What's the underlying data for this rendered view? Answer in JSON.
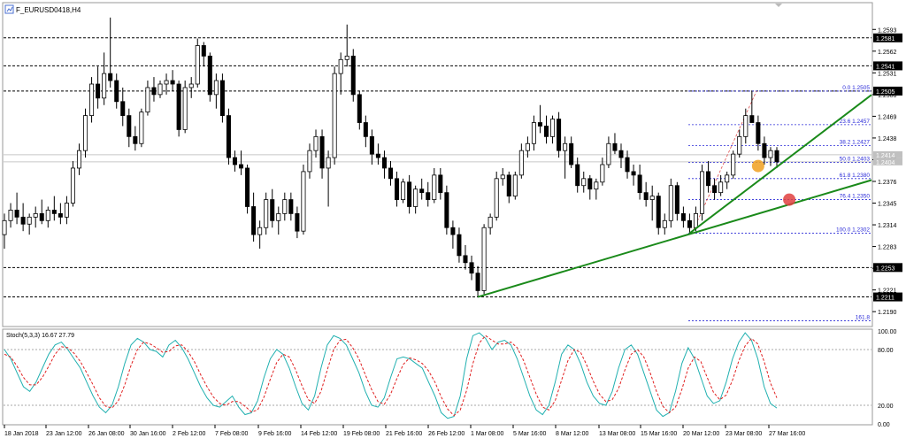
{
  "window": {
    "title": "F_EURUSD0418,H4",
    "icon": "chart-window-icon",
    "accent": "#4a6fd1"
  },
  "colors": {
    "candle_up": "#ffffff",
    "candle_down": "#000000",
    "trendline": "#1a8a1a",
    "fib": "#2a2ad8",
    "fib_diag": "#e05050",
    "hline": "#000000",
    "stoch_main": "#20b0b0",
    "stoch_signal": "#e02020",
    "marker_orange": "#f0a020",
    "marker_red": "#e04040"
  },
  "chart_data": [
    {
      "type": "candlestick",
      "title": "F_EURUSD0418,H4",
      "ylim": [
        1.217,
        1.263
      ],
      "price_ticks": [
        "1.2593",
        "1.2562",
        "1.2531",
        "1.2500",
        "1.2469",
        "1.2438",
        "1.2407",
        "1.2376",
        "1.2345",
        "1.2314",
        "1.2283",
        "1.2252",
        "1.2221",
        "1.2190"
      ],
      "hlines": [
        {
          "value": 1.2581,
          "label": "1.2581"
        },
        {
          "value": 1.2541,
          "label": "1.2541"
        },
        {
          "value": 1.2505,
          "label": "1.2505"
        },
        {
          "value": 1.2253,
          "label": "1.2253"
        },
        {
          "value": 1.2211,
          "label": "1.2211"
        }
      ],
      "current_price_labels": [
        "1.2414",
        "1.2404"
      ],
      "fib_levels": [
        {
          "label": "0.0  1.2505",
          "value": 1.2505
        },
        {
          "label": "23.6  1.2457",
          "value": 1.2457
        },
        {
          "label": "38.2  1.2427",
          "value": 1.2427
        },
        {
          "label": "50.0  1.2403",
          "value": 1.2403
        },
        {
          "label": "61.8  1.2380",
          "value": 1.238
        },
        {
          "label": "76.4  1.2350",
          "value": 1.235
        },
        {
          "label": "100.0  1.2302",
          "value": 1.2302
        },
        {
          "label": "161.8",
          "value": 1.2177
        }
      ],
      "x_labels": [
        "18 Jan 2018",
        "23 Jan 12:00",
        "26 Jan 08:00",
        "30 Jan 16:00",
        "2 Feb 12:00",
        "7 Feb 08:00",
        "9 Feb 16:00",
        "14 Feb 12:00",
        "19 Feb 08:00",
        "21 Feb 16:00",
        "26 Feb 12:00",
        "1 Mar 08:00",
        "5 Mar 16:00",
        "8 Mar 12:00",
        "13 Mar 08:00",
        "15 Mar 16:00",
        "20 Mar 12:00",
        "23 Mar 08:00",
        "27 Mar 16:00"
      ],
      "candles": [
        [
          1.23,
          1.233,
          1.228,
          1.232
        ],
        [
          1.232,
          1.2345,
          1.231,
          1.2335
        ],
        [
          1.2335,
          1.236,
          1.2315,
          1.2325
        ],
        [
          1.2325,
          1.2345,
          1.2305,
          1.2315
        ],
        [
          1.2315,
          1.233,
          1.23,
          1.2325
        ],
        [
          1.2325,
          1.234,
          1.231,
          1.233
        ],
        [
          1.233,
          1.235,
          1.2315,
          1.232
        ],
        [
          1.232,
          1.234,
          1.231,
          1.2335
        ],
        [
          1.2335,
          1.2355,
          1.232,
          1.233
        ],
        [
          1.233,
          1.2345,
          1.2315,
          1.2325
        ],
        [
          1.2325,
          1.2355,
          1.2315,
          1.2345
        ],
        [
          1.2345,
          1.2405,
          1.234,
          1.2395
        ],
        [
          1.2395,
          1.243,
          1.2385,
          1.242
        ],
        [
          1.242,
          1.248,
          1.241,
          1.247
        ],
        [
          1.247,
          1.2525,
          1.246,
          1.2515
        ],
        [
          1.2515,
          1.254,
          1.248,
          1.2495
        ],
        [
          1.2495,
          1.256,
          1.2485,
          1.253
        ],
        [
          1.253,
          1.261,
          1.251,
          1.252
        ],
        [
          1.252,
          1.253,
          1.248,
          1.249
        ],
        [
          1.249,
          1.251,
          1.2455,
          1.247
        ],
        [
          1.247,
          1.248,
          1.2425,
          1.244
        ],
        [
          1.244,
          1.2455,
          1.242,
          1.243
        ],
        [
          1.243,
          1.248,
          1.2425,
          1.2475
        ],
        [
          1.2475,
          1.252,
          1.247,
          1.251
        ],
        [
          1.251,
          1.2525,
          1.249,
          1.25
        ],
        [
          1.25,
          1.252,
          1.2495,
          1.2515
        ],
        [
          1.2515,
          1.253,
          1.25,
          1.252
        ],
        [
          1.252,
          1.2535,
          1.2505,
          1.2515
        ],
        [
          1.2515,
          1.252,
          1.244,
          1.245
        ],
        [
          1.245,
          1.252,
          1.2445,
          1.251
        ],
        [
          1.251,
          1.2525,
          1.2495,
          1.2515
        ],
        [
          1.2515,
          1.258,
          1.251,
          1.257
        ],
        [
          1.257,
          1.2575,
          1.254,
          1.2555
        ],
        [
          1.2555,
          1.256,
          1.249,
          1.25
        ],
        [
          1.25,
          1.253,
          1.248,
          1.252
        ],
        [
          1.252,
          1.253,
          1.246,
          1.247
        ],
        [
          1.247,
          1.248,
          1.24,
          1.241
        ],
        [
          1.241,
          1.242,
          1.239,
          1.24
        ],
        [
          1.24,
          1.242,
          1.2385,
          1.2395
        ],
        [
          1.2395,
          1.24,
          1.233,
          1.234
        ],
        [
          1.234,
          1.236,
          1.229,
          1.23
        ],
        [
          1.23,
          1.232,
          1.228,
          1.231
        ],
        [
          1.231,
          1.236,
          1.23,
          1.235
        ],
        [
          1.235,
          1.2365,
          1.231,
          1.232
        ],
        [
          1.232,
          1.234,
          1.23,
          1.233
        ],
        [
          1.233,
          1.236,
          1.232,
          1.235
        ],
        [
          1.235,
          1.236,
          1.232,
          1.233
        ],
        [
          1.233,
          1.234,
          1.2295,
          1.2305
        ],
        [
          1.2305,
          1.24,
          1.23,
          1.239
        ],
        [
          1.239,
          1.243,
          1.238,
          1.242
        ],
        [
          1.242,
          1.245,
          1.241,
          1.244
        ],
        [
          1.244,
          1.245,
          1.238,
          1.2395
        ],
        [
          1.2395,
          1.242,
          1.234,
          1.241
        ],
        [
          1.241,
          1.254,
          1.24,
          1.253
        ],
        [
          1.253,
          1.256,
          1.25,
          1.255
        ],
        [
          1.255,
          1.26,
          1.254,
          1.2555
        ],
        [
          1.2555,
          1.2565,
          1.249,
          1.25
        ],
        [
          1.25,
          1.2505,
          1.245,
          1.246
        ],
        [
          1.246,
          1.247,
          1.2425,
          1.244
        ],
        [
          1.244,
          1.245,
          1.24,
          1.2415
        ],
        [
          1.2415,
          1.243,
          1.24,
          1.241
        ],
        [
          1.241,
          1.242,
          1.238,
          1.2395
        ],
        [
          1.2395,
          1.2405,
          1.237,
          1.238
        ],
        [
          1.238,
          1.239,
          1.234,
          1.235
        ],
        [
          1.235,
          1.238,
          1.2345,
          1.2375
        ],
        [
          1.2375,
          1.2385,
          1.233,
          1.234
        ],
        [
          1.234,
          1.237,
          1.233,
          1.2365
        ],
        [
          1.2365,
          1.238,
          1.235,
          1.236
        ],
        [
          1.236,
          1.2375,
          1.234,
          1.235
        ],
        [
          1.235,
          1.2395,
          1.2345,
          1.2385
        ],
        [
          1.2385,
          1.2395,
          1.235,
          1.236
        ],
        [
          1.236,
          1.237,
          1.23,
          1.231
        ],
        [
          1.231,
          1.232,
          1.228,
          1.23
        ],
        [
          1.23,
          1.231,
          1.226,
          1.227
        ],
        [
          1.227,
          1.2285,
          1.225,
          1.226
        ],
        [
          1.226,
          1.227,
          1.2235,
          1.2245
        ],
        [
          1.2245,
          1.2255,
          1.2211,
          1.222
        ],
        [
          1.222,
          1.2315,
          1.2215,
          1.231
        ],
        [
          1.231,
          1.233,
          1.23,
          1.2325
        ],
        [
          1.2325,
          1.239,
          1.232,
          1.238
        ],
        [
          1.238,
          1.2395,
          1.237,
          1.2385
        ],
        [
          1.2385,
          1.239,
          1.2345,
          1.2355
        ],
        [
          1.2355,
          1.239,
          1.235,
          1.2385
        ],
        [
          1.2385,
          1.243,
          1.238,
          1.242
        ],
        [
          1.242,
          1.244,
          1.241,
          1.243
        ],
        [
          1.243,
          1.247,
          1.242,
          1.246
        ],
        [
          1.246,
          1.2485,
          1.2445,
          1.2455
        ],
        [
          1.2455,
          1.247,
          1.243,
          1.244
        ],
        [
          1.244,
          1.247,
          1.243,
          1.2465
        ],
        [
          1.2465,
          1.2475,
          1.241,
          1.242
        ],
        [
          1.242,
          1.244,
          1.238,
          1.243
        ],
        [
          1.243,
          1.244,
          1.2395,
          1.24
        ],
        [
          1.24,
          1.241,
          1.236,
          1.237
        ],
        [
          1.237,
          1.239,
          1.236,
          1.238
        ],
        [
          1.238,
          1.2385,
          1.235,
          1.2365
        ],
        [
          1.2365,
          1.238,
          1.235,
          1.2375
        ],
        [
          1.2375,
          1.241,
          1.237,
          1.24
        ],
        [
          1.24,
          1.244,
          1.2395,
          1.243
        ],
        [
          1.243,
          1.2445,
          1.2415,
          1.242
        ],
        [
          1.242,
          1.243,
          1.2395,
          1.241
        ],
        [
          1.241,
          1.242,
          1.238,
          1.239
        ],
        [
          1.239,
          1.24,
          1.237,
          1.2385
        ],
        [
          1.2385,
          1.24,
          1.235,
          1.236
        ],
        [
          1.236,
          1.2375,
          1.234,
          1.235
        ],
        [
          1.235,
          1.237,
          1.232,
          1.2355
        ],
        [
          1.2355,
          1.236,
          1.23,
          1.231
        ],
        [
          1.231,
          1.233,
          1.23,
          1.232
        ],
        [
          1.232,
          1.238,
          1.231,
          1.237
        ],
        [
          1.237,
          1.2375,
          1.232,
          1.233
        ],
        [
          1.233,
          1.234,
          1.231,
          1.232
        ],
        [
          1.232,
          1.233,
          1.2302,
          1.231
        ],
        [
          1.231,
          1.234,
          1.2305,
          1.233
        ],
        [
          1.233,
          1.24,
          1.232,
          1.239
        ],
        [
          1.239,
          1.2405,
          1.236,
          1.237
        ],
        [
          1.237,
          1.238,
          1.235,
          1.236
        ],
        [
          1.236,
          1.2385,
          1.2355,
          1.2375
        ],
        [
          1.2375,
          1.239,
          1.2365,
          1.2385
        ],
        [
          1.2385,
          1.242,
          1.238,
          1.2415
        ],
        [
          1.2415,
          1.245,
          1.241,
          1.244
        ],
        [
          1.244,
          1.248,
          1.243,
          1.247
        ],
        [
          1.247,
          1.2505,
          1.246,
          1.246
        ],
        [
          1.246,
          1.247,
          1.242,
          1.243
        ],
        [
          1.243,
          1.244,
          1.24,
          1.241
        ],
        [
          1.241,
          1.2425,
          1.2398,
          1.242
        ],
        [
          1.242,
          1.2425,
          1.2395,
          1.2404
        ]
      ],
      "trendlines": [
        {
          "from": [
            76,
            1.2211
          ],
          "to": [
            140,
            1.238
          ]
        },
        {
          "from": [
            110,
            1.2302
          ],
          "to": [
            140,
            1.2505
          ]
        }
      ],
      "markers": [
        {
          "at": [
            121,
            1.2398
          ],
          "color": "orange"
        },
        {
          "at": [
            126,
            1.235
          ],
          "color": "red"
        }
      ]
    },
    {
      "type": "line",
      "title": "Stoch(5,3,3) 16.67 27.79",
      "ylim": [
        0,
        100
      ],
      "levels": [
        80,
        20
      ],
      "y_ticks": [
        "100.00",
        "80.00",
        "20.00",
        "0.00"
      ],
      "series": [
        {
          "name": "Main",
          "values": [
            80,
            70,
            55,
            40,
            35,
            45,
            60,
            75,
            85,
            88,
            80,
            70,
            60,
            45,
            30,
            18,
            12,
            20,
            40,
            65,
            85,
            92,
            88,
            80,
            78,
            72,
            85,
            90,
            82,
            70,
            55,
            40,
            28,
            20,
            18,
            24,
            30,
            18,
            10,
            12,
            25,
            50,
            70,
            80,
            75,
            60,
            40,
            22,
            15,
            30,
            60,
            85,
            95,
            92,
            85,
            70,
            55,
            35,
            20,
            18,
            28,
            50,
            70,
            72,
            70,
            65,
            60,
            45,
            30,
            12,
            6,
            8,
            30,
            70,
            95,
            98,
            92,
            80,
            88,
            90,
            85,
            70,
            50,
            30,
            15,
            10,
            20,
            45,
            75,
            85,
            80,
            65,
            45,
            30,
            22,
            20,
            35,
            60,
            80,
            85,
            75,
            55,
            35,
            15,
            8,
            12,
            35,
            65,
            82,
            70,
            50,
            30,
            22,
            25,
            45,
            70,
            88,
            98,
            90,
            70,
            40,
            22,
            17
          ]
        },
        {
          "name": "Signal",
          "values": [
            75,
            72,
            62,
            50,
            42,
            42,
            50,
            62,
            75,
            83,
            82,
            76,
            67,
            55,
            42,
            28,
            19,
            17,
            25,
            42,
            63,
            80,
            88,
            86,
            82,
            77,
            78,
            84,
            85,
            78,
            67,
            53,
            40,
            29,
            22,
            20,
            24,
            24,
            19,
            13,
            15,
            29,
            48,
            66,
            75,
            72,
            58,
            41,
            26,
            22,
            35,
            58,
            80,
            90,
            91,
            82,
            70,
            53,
            37,
            24,
            21,
            32,
            49,
            64,
            71,
            69,
            65,
            57,
            45,
            29,
            16,
            9,
            15,
            36,
            65,
            87,
            95,
            90,
            86,
            86,
            88,
            82,
            68,
            50,
            32,
            18,
            15,
            25,
            47,
            68,
            80,
            77,
            63,
            46,
            32,
            24,
            26,
            38,
            58,
            75,
            80,
            72,
            55,
            35,
            19,
            12,
            18,
            37,
            60,
            72,
            67,
            50,
            34,
            26,
            31,
            47,
            68,
            84,
            92,
            86,
            67,
            44,
            28
          ]
        }
      ]
    }
  ]
}
